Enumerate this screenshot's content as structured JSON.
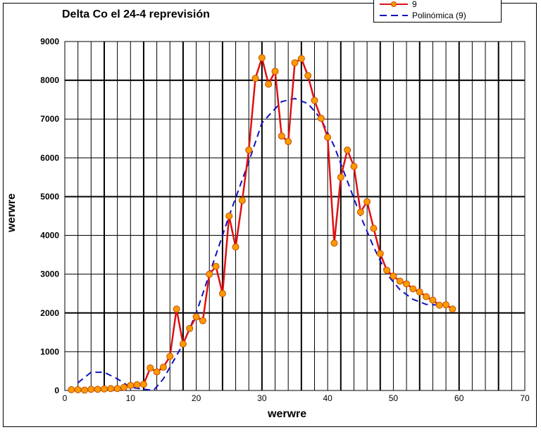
{
  "chart_data": {
    "type": "line",
    "title": "Delta Co el 24-4 reprevisión",
    "xlabel": "werwre",
    "ylabel": "werwre",
    "xlim": [
      0,
      70
    ],
    "ylim": [
      0,
      9000
    ],
    "xticks": [
      0,
      10,
      20,
      30,
      40,
      50,
      60,
      70
    ],
    "yticks": [
      0,
      1000,
      2000,
      3000,
      4000,
      5000,
      6000,
      7000,
      8000,
      9000
    ],
    "grid": true,
    "legend_position": "top-right",
    "series": [
      {
        "name": "9",
        "color": "#e01010",
        "marker_color": "#ff9900",
        "x": [
          1,
          2,
          3,
          4,
          5,
          6,
          7,
          8,
          9,
          10,
          11,
          12,
          13,
          14,
          15,
          16,
          17,
          18,
          19,
          20,
          21,
          22,
          23,
          24,
          25,
          26,
          27,
          28,
          29,
          30,
          31,
          32,
          33,
          34,
          35,
          36,
          37,
          38,
          39,
          40,
          41,
          42,
          43,
          44,
          45,
          46,
          47,
          48,
          49,
          50,
          51,
          52,
          53,
          54,
          55,
          56,
          57,
          58,
          59
        ],
        "y": [
          20,
          20,
          10,
          30,
          30,
          40,
          50,
          50,
          80,
          130,
          150,
          160,
          580,
          480,
          600,
          880,
          2100,
          1200,
          1600,
          1900,
          1800,
          3000,
          3200,
          2500,
          4500,
          3700,
          4900,
          6200,
          8050,
          8580,
          7900,
          8230,
          6560,
          6420,
          8450,
          8560,
          8120,
          7480,
          7020,
          6530,
          3800,
          5500,
          6200,
          5780,
          4600,
          4870,
          4180,
          3530,
          3100,
          2950,
          2820,
          2750,
          2620,
          2540,
          2420,
          2330,
          2200,
          2210,
          2100
        ]
      },
      {
        "name": "Polinómica (9)",
        "color": "#1010c0",
        "type": "trendline",
        "x": [
          2,
          4,
          6,
          8,
          10,
          12,
          13.5,
          15,
          18,
          20,
          22,
          25,
          28,
          30,
          33,
          35,
          37,
          39,
          41,
          43,
          45,
          47,
          49,
          51,
          53,
          55,
          57,
          58
        ],
        "y": [
          200,
          470,
          470,
          300,
          80,
          -100,
          0,
          300,
          1200,
          2000,
          3000,
          4500,
          5900,
          6900,
          7450,
          7530,
          7400,
          7000,
          6300,
          5400,
          4500,
          3700,
          3000,
          2600,
          2350,
          2220,
          2200,
          2230
        ]
      }
    ]
  }
}
